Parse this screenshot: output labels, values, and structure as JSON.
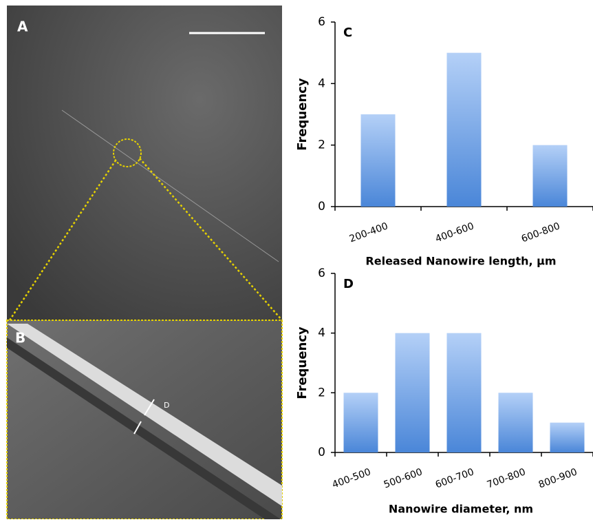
{
  "image_labels": [
    "A",
    "B"
  ],
  "image_annotation": "D",
  "chart_data": [
    {
      "type": "bar",
      "panel_label": "C",
      "ylabel": "Frequency",
      "xlabel": "Released Nanowire length, µm",
      "categories": [
        "200-400",
        "400-600",
        "600-800"
      ],
      "values": [
        3,
        5,
        2
      ],
      "color": "#4a86d8",
      "ylim": [
        0,
        6
      ],
      "yticks": [
        0,
        2,
        4,
        6
      ]
    },
    {
      "type": "bar",
      "panel_label": "D",
      "ylabel": "Frequency",
      "xlabel": "Nanowire diameter, nm",
      "categories": [
        "400-500",
        "500-600",
        "600-700",
        "700-800",
        "800-900"
      ],
      "values": [
        2,
        4,
        4,
        2,
        1
      ],
      "color": "#4a86d8",
      "ylim": [
        0,
        6
      ],
      "yticks": [
        0,
        2,
        4,
        6
      ]
    }
  ]
}
